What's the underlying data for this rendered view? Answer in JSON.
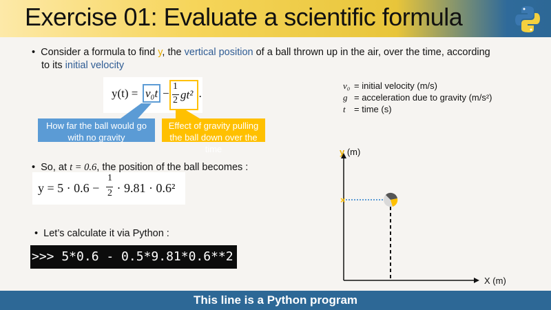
{
  "header": {
    "title": "Exercise 01: Evaluate a scientific formula",
    "logo": "python-logo"
  },
  "bullet1": {
    "a": "Consider a formula to find ",
    "y": "y",
    "b": ", the ",
    "vp": "vertical position",
    "c": " of a ball thrown up in the air, over the time, according",
    "d": "to its ",
    "iv": "initial velocity"
  },
  "formula": {
    "lhs": "y(t) =",
    "term1": "v₀t",
    "minus": "−",
    "half_num": "1",
    "half_den": "2",
    "term2": "gt²",
    "dot": "."
  },
  "callouts": {
    "blue": "How far the ball would go with no gravity",
    "yellow": "Effect of gravity pulling the ball down over the time"
  },
  "legend": [
    {
      "sym": "v₀",
      "text": "= initial velocity (m/s)"
    },
    {
      "sym": "g",
      "text": "= acceleration due to gravity (m/s²)"
    },
    {
      "sym": "t",
      "text": "= time (s)"
    }
  ],
  "bullet2": {
    "a": "So, at ",
    "expr": "t = 0.6",
    "b": ", the position of the ball becomes :"
  },
  "equation": {
    "text": "y = 5 · 0.6 − ",
    "num": "1",
    "den": "2",
    "rest": " · 9.81 · 0.6²"
  },
  "bullet3": "Let’s calculate it via Python :",
  "code": ">>> 5*0.6 - 0.5*9.81*0.6**2",
  "diagram": {
    "y_label": "y",
    "y_unit": " (m)",
    "x_label": "X (m)"
  },
  "footer": "This line is a Python program",
  "colors": {
    "blue": "#5b9bd5",
    "yellow": "#ffc000",
    "footer": "#2d6896"
  }
}
